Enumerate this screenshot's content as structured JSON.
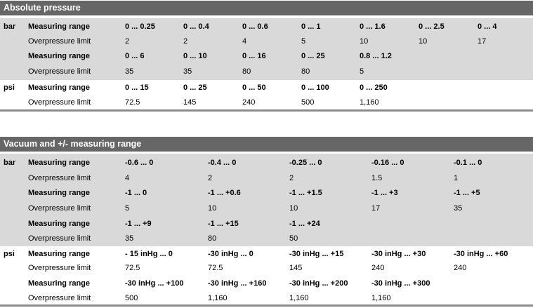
{
  "sections": [
    {
      "title": "Absolute pressure",
      "groups": [
        {
          "unit": "bar",
          "rows": [
            {
              "label": "Measuring range",
              "bold": true,
              "cells": [
                "0 ... 0.25",
                "0 ... 0.4",
                "0 ... 0.6",
                "0 ... 1",
                "0 ... 1.6",
                "0 ... 2.5",
                "0 ... 4"
              ]
            },
            {
              "label": "Overpressure limit",
              "bold": false,
              "cells": [
                "2",
                "2",
                "4",
                "5",
                "10",
                "10",
                "17"
              ]
            },
            {
              "label": "Measuring range",
              "bold": true,
              "cells": [
                "0 ... 6",
                "0 ... 10",
                "0 ... 16",
                "0 ... 25",
                "0.8 ... 1.2"
              ]
            },
            {
              "label": "Overpressure limit",
              "bold": false,
              "cells": [
                "35",
                "35",
                "80",
                "80",
                "5"
              ]
            }
          ]
        },
        {
          "unit": "psi",
          "rows": [
            {
              "label": "Measuring range",
              "bold": true,
              "cells": [
                "0 ... 15",
                "0 ... 25",
                "0 ... 50",
                "0 ... 100",
                "0 ... 250"
              ]
            },
            {
              "label": "Overpressure limit",
              "bold": false,
              "cells": [
                "72.5",
                "145",
                "240",
                "500",
                "1,160"
              ]
            }
          ]
        }
      ]
    },
    {
      "title": "Vacuum and +/- measuring range",
      "groups": [
        {
          "unit": "bar",
          "rows": [
            {
              "label": "Measuring range",
              "bold": true,
              "cells": [
                "-0.6 ... 0",
                "-0.4 ... 0",
                "-0.25 ... 0",
                "-0.16 ... 0",
                "-0.1 ... 0"
              ]
            },
            {
              "label": "Overpressure limit",
              "bold": false,
              "cells": [
                "4",
                "2",
                "2",
                "1.5",
                "1"
              ]
            },
            {
              "label": "Measuring range",
              "bold": true,
              "cells": [
                "-1 ... 0",
                "-1 ... +0.6",
                "-1 ... +1.5",
                "-1 ... +3",
                "-1 ... +5"
              ]
            },
            {
              "label": "Overpressure limit",
              "bold": false,
              "cells": [
                "5",
                "10",
                "10",
                "17",
                "35"
              ]
            },
            {
              "label": "Measuring range",
              "bold": true,
              "cells": [
                "-1 ... +9",
                "-1 ... +15",
                "-1 ... +24"
              ]
            },
            {
              "label": "Overpressure limit",
              "bold": false,
              "cells": [
                "35",
                "80",
                "50"
              ]
            }
          ]
        },
        {
          "unit": "psi",
          "rows": [
            {
              "label": "Measuring range",
              "bold": true,
              "cells": [
                "- 15 inHg ... 0",
                "-30 inHg ... 0",
                "-30 inHg ... +15",
                "-30 inHg ... +30",
                "-30 inHg ... +60"
              ]
            },
            {
              "label": "Overpressure limit",
              "bold": false,
              "cells": [
                "72.5",
                "72.5",
                "145",
                "240",
                "240"
              ]
            },
            {
              "label": "Measuring range",
              "bold": true,
              "cells": [
                "-30 inHg ... +100",
                "-30 inHg ... +160",
                "-30 inHg ... +200",
                "-30 inHg ... +300"
              ]
            },
            {
              "label": "Overpressure limit",
              "bold": false,
              "cells": [
                "500",
                "1,160",
                "1,160",
                "1,160"
              ]
            }
          ]
        }
      ]
    }
  ]
}
